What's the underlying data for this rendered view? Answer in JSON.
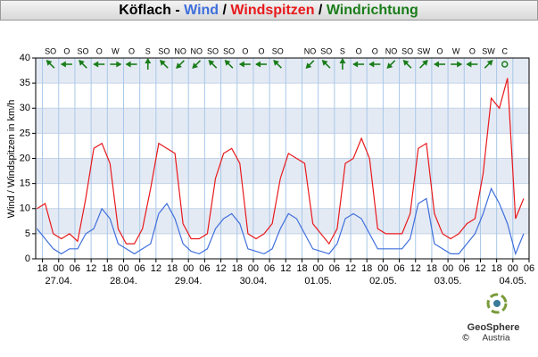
{
  "chart_data": {
    "type": "line",
    "title": [
      {
        "text": "Köflach",
        "color": "#000000"
      },
      {
        "text": " - ",
        "color": "#000000"
      },
      {
        "text": "Wind",
        "color": "#3f6fdc"
      },
      {
        "text": " / ",
        "color": "#000000"
      },
      {
        "text": "Windspitzen",
        "color": "#e8191c"
      },
      {
        "text": " / ",
        "color": "#000000"
      },
      {
        "text": "Windrichtung",
        "color": "#1a7d1a"
      }
    ],
    "y_label": "Wind / Windspitzen in km/h",
    "grid": true,
    "xlim": [
      -8.5,
      174
    ],
    "ylim": [
      0,
      40
    ],
    "yticks": [
      0,
      5,
      10,
      15,
      20,
      25,
      30,
      35,
      40
    ],
    "xticks": [
      {
        "value": -6,
        "label": "18"
      },
      {
        "value": 0,
        "label": "00"
      },
      {
        "value": 6,
        "label": "06"
      },
      {
        "value": 12,
        "label": "12"
      },
      {
        "value": 18,
        "label": "18"
      },
      {
        "value": 24,
        "label": "00"
      },
      {
        "value": 30,
        "label": "06"
      },
      {
        "value": 36,
        "label": "12"
      },
      {
        "value": 42,
        "label": "18"
      },
      {
        "value": 48,
        "label": "00"
      },
      {
        "value": 54,
        "label": "06"
      },
      {
        "value": 60,
        "label": "12"
      },
      {
        "value": 66,
        "label": "18"
      },
      {
        "value": 72,
        "label": "00"
      },
      {
        "value": 78,
        "label": "06"
      },
      {
        "value": 84,
        "label": "12"
      },
      {
        "value": 90,
        "label": "18"
      },
      {
        "value": 96,
        "label": "00"
      },
      {
        "value": 102,
        "label": "06"
      },
      {
        "value": 108,
        "label": "12"
      },
      {
        "value": 114,
        "label": "18"
      },
      {
        "value": 120,
        "label": "00"
      },
      {
        "value": 126,
        "label": "06"
      },
      {
        "value": 132,
        "label": "12"
      },
      {
        "value": 138,
        "label": "18"
      },
      {
        "value": 144,
        "label": "00"
      },
      {
        "value": 150,
        "label": "06"
      },
      {
        "value": 156,
        "label": "12"
      },
      {
        "value": 162,
        "label": "18"
      },
      {
        "value": 168,
        "label": "00"
      },
      {
        "value": 174,
        "label": "06"
      }
    ],
    "date_labels": [
      {
        "value": 0,
        "label": "27.04."
      },
      {
        "value": 24,
        "label": "28.04."
      },
      {
        "value": 48,
        "label": "29.04."
      },
      {
        "value": 72,
        "label": "30.04."
      },
      {
        "value": 96,
        "label": "01.05."
      },
      {
        "value": 120,
        "label": "02.05."
      },
      {
        "value": 144,
        "label": "03.05."
      },
      {
        "value": 168,
        "label": "04.05."
      }
    ],
    "x": [
      -8,
      -5,
      -2,
      1,
      4,
      7,
      10,
      13,
      16,
      19,
      22,
      25,
      28,
      31,
      34,
      37,
      40,
      43,
      46,
      49,
      52,
      55,
      58,
      61,
      64,
      67,
      70,
      73,
      76,
      79,
      82,
      85,
      88,
      91,
      94,
      97,
      100,
      103,
      106,
      109,
      112,
      115,
      118,
      121,
      124,
      127,
      130,
      133,
      136,
      139,
      142,
      145,
      148,
      151,
      154,
      157,
      160,
      163,
      166,
      169,
      172
    ],
    "series": [
      {
        "name": "Wind",
        "color": "#3f6fdc",
        "values": [
          6,
          4,
          2,
          1,
          2,
          2,
          5,
          6,
          10,
          8,
          3,
          2,
          1,
          2,
          3,
          9,
          11,
          8,
          3,
          1.5,
          1,
          2,
          6,
          8,
          9,
          7,
          2,
          1.5,
          1,
          2,
          6,
          9,
          8,
          5,
          2,
          1.5,
          1,
          3,
          8,
          9,
          8,
          5,
          2,
          2,
          2,
          2,
          4,
          11,
          12,
          3,
          2,
          1,
          1,
          3,
          5,
          9,
          14,
          11,
          7,
          1,
          5
        ]
      },
      {
        "name": "Windspitzen",
        "color": "#e8191c",
        "values": [
          10,
          11,
          5,
          4,
          5,
          3.5,
          12,
          22,
          23,
          19,
          6,
          3,
          3,
          6,
          14,
          23,
          22,
          21,
          7,
          4,
          4,
          5,
          16,
          21,
          22,
          19,
          5,
          4,
          5,
          7,
          16,
          21,
          20,
          19,
          7,
          5,
          3,
          6,
          19,
          20,
          24,
          20,
          6,
          5,
          5,
          5,
          9,
          22,
          23,
          9,
          5,
          4,
          5,
          7,
          8,
          17,
          32,
          30,
          36,
          8,
          12
        ]
      }
    ],
    "direction": {
      "color": "#1a7d1a",
      "x": [
        -3,
        3,
        9,
        15,
        21,
        27,
        33,
        39,
        45,
        51,
        57,
        63,
        69,
        75,
        81,
        87,
        93,
        99,
        105,
        111,
        117,
        123,
        129,
        135,
        141,
        147,
        153,
        159,
        165
      ],
      "labels": [
        "SO",
        "O",
        "SO",
        "O",
        "W",
        "O",
        "S",
        "SO",
        "NO",
        "NO",
        "SO",
        "SO",
        "O",
        "O",
        "SO",
        null,
        "NO",
        "SO",
        "S",
        "O",
        "O",
        "NO",
        "SO",
        "SW",
        "O",
        "W",
        "O",
        "SW",
        "C"
      ],
      "deg": [
        135,
        90,
        135,
        90,
        270,
        90,
        180,
        135,
        45,
        45,
        135,
        135,
        90,
        90,
        135,
        null,
        45,
        135,
        180,
        90,
        90,
        45,
        135,
        225,
        90,
        270,
        90,
        225,
        null
      ]
    },
    "logo": {
      "name": "GeoSphere",
      "sub": "Austria",
      "copyright": "©"
    }
  }
}
